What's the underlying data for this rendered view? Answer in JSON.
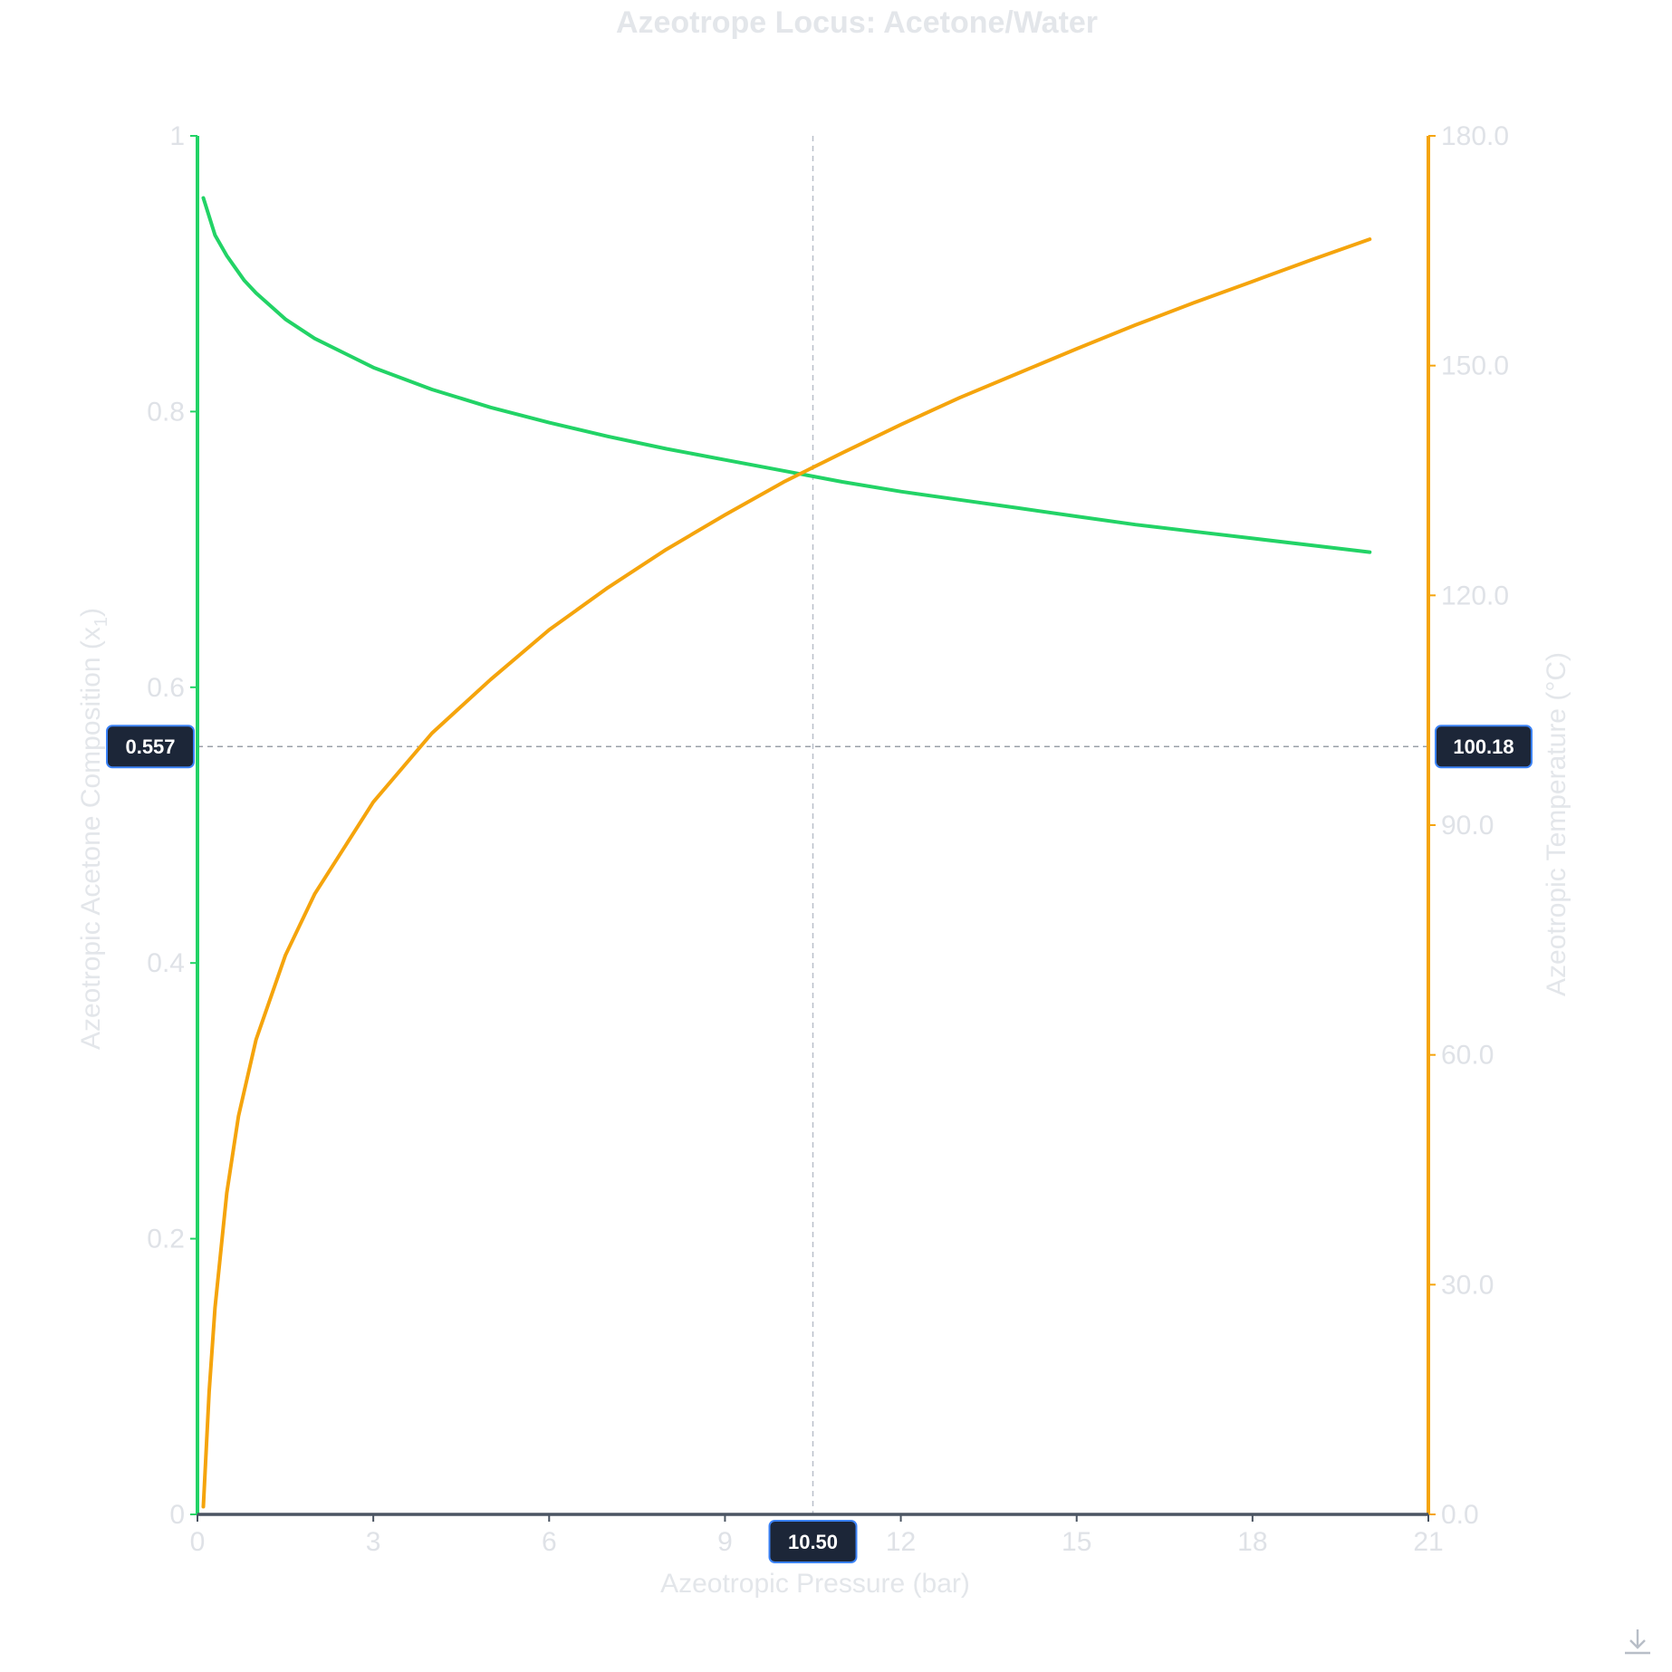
{
  "chart_data": {
    "type": "line",
    "title": "Azeotrope Locus: Acetone/Water",
    "xlabel": "Azeotropic Pressure (bar)",
    "ylabel_left": "Azeotropic Acetone Composition (x",
    "ylabel_left_sub": "1",
    "ylabel_left_close": ")",
    "ylabel_right": "Azeotropic Temperature (°C)",
    "xlim": [
      0,
      21
    ],
    "ylim_left": [
      0,
      1
    ],
    "ylim_right": [
      0,
      180
    ],
    "x_ticks": [
      "0",
      "3",
      "6",
      "9",
      "12",
      "15",
      "18",
      "21"
    ],
    "y_left_ticks": [
      "0",
      "0.2",
      "0.4",
      "0.6",
      "0.8",
      "1"
    ],
    "y_right_ticks": [
      "0.0",
      "30.0",
      "60.0",
      "90.0",
      "120.0",
      "150.0",
      "180.0"
    ],
    "series": [
      {
        "axis": "left",
        "color": "#22d366",
        "x": [
          0.1,
          0.3,
          0.5,
          0.8,
          1.0,
          1.5,
          2.0,
          3.0,
          4.0,
          5.0,
          6.0,
          7.0,
          8.0,
          9.0,
          10.0,
          10.5,
          11.0,
          12.0,
          13.0,
          14.0,
          15.0,
          16.0,
          17.0,
          18.0,
          19.0,
          20.0
        ],
        "y": [
          0.955,
          0.928,
          0.913,
          0.895,
          0.886,
          0.867,
          0.853,
          0.832,
          0.816,
          0.803,
          0.792,
          0.782,
          0.773,
          0.765,
          0.757,
          0.753,
          0.749,
          0.742,
          0.736,
          0.73,
          0.724,
          0.718,
          0.713,
          0.708,
          0.703,
          0.698
        ]
      },
      {
        "axis": "right",
        "color": "#f5a40c",
        "x": [
          0.1,
          0.2,
          0.3,
          0.5,
          0.7,
          1.0,
          1.5,
          2.0,
          3.0,
          4.0,
          5.0,
          6.0,
          7.0,
          8.0,
          9.0,
          10.0,
          10.5,
          11.0,
          12.0,
          13.0,
          14.0,
          15.0,
          16.0,
          17.0,
          18.0,
          19.0,
          20.0
        ],
        "y": [
          1.0,
          16.0,
          27.0,
          42.0,
          52.0,
          62.0,
          73.0,
          81.0,
          93.0,
          102.0,
          109.0,
          115.5,
          121.0,
          126.0,
          130.5,
          134.8,
          136.7,
          138.6,
          142.3,
          145.8,
          149.0,
          152.2,
          155.3,
          158.2,
          161.0,
          163.8,
          166.5
        ]
      }
    ],
    "crosshair": {
      "x_value": 10.5,
      "y_left_value": 0.557,
      "x_label": "10.50",
      "y_left_label": "0.557",
      "y_right_label": "100.18"
    },
    "legend": "none",
    "grid": false
  },
  "icons": {
    "download": "download-icon"
  }
}
